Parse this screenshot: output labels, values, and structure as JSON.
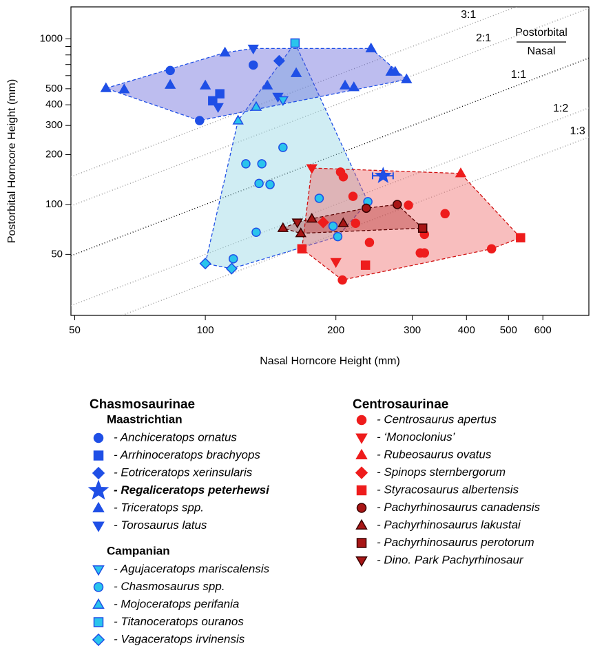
{
  "chart_data": {
    "type": "scatter",
    "xlabel": "Nasal Horncore Height (mm)",
    "ylabel": "Postorbital Horncore Height (mm)",
    "xscale": "log",
    "yscale": "log",
    "xlim": [
      49,
      766
    ],
    "ylim": [
      21.4,
      1560
    ],
    "xticks": [
      50,
      100,
      200,
      300,
      400,
      500,
      600
    ],
    "yticks": [
      50,
      100,
      200,
      300,
      400,
      500,
      1000
    ],
    "yminor_ticks": [
      600,
      700,
      800,
      900
    ],
    "ratio_title": {
      "top": "Postorbital",
      "bottom": "Nasal"
    },
    "ratio_lines": [
      {
        "label": "3:1",
        "ratio": 3,
        "color": "#9a9a9a"
      },
      {
        "label": "2:1",
        "ratio": 2,
        "color": "#9a9a9a"
      },
      {
        "label": "1:1",
        "ratio": 1,
        "color": "#000000"
      },
      {
        "label": "1:2",
        "ratio": 0.5,
        "color": "#9a9a9a"
      },
      {
        "label": "1:3",
        "ratio": 0.3333,
        "color": "#9a9a9a"
      }
    ],
    "series": [
      {
        "name": "- Anchiceratops ornatus",
        "marker": "circle",
        "color": "#1f4fe6",
        "edge": "#1f4fe6",
        "x": [
          83,
          129,
          97
        ],
        "values": [
          644,
          695,
          321
        ]
      },
      {
        "name": "- Arrhinoceratops brachyops",
        "marker": "square",
        "color": "#1f4fe6",
        "edge": "#1f4fe6",
        "x": [
          108,
          104
        ],
        "values": [
          466,
          423
        ]
      },
      {
        "name": "- Eotriceratops xerinsularis",
        "marker": "diamond",
        "color": "#1f4fe6",
        "edge": "#1f4fe6",
        "x": [
          148
        ],
        "values": [
          737
        ]
      },
      {
        "name": "- Regaliceratops peterhewsi",
        "marker": "star",
        "bold": true,
        "color": "#1f4fe6",
        "edge": "#1f4fe6",
        "x": [
          257
        ],
        "values": [
          149
        ],
        "xerr": [
          14
        ]
      },
      {
        "name": "- Triceratops spp.",
        "marker": "triangle-up",
        "color": "#1f4fe6",
        "edge": "#1f4fe6",
        "x": [
          59,
          65,
          83,
          100,
          111,
          162,
          139,
          210,
          220,
          241,
          268,
          274,
          291
        ],
        "values": [
          503,
          495,
          527,
          522,
          826,
          620,
          522,
          522,
          510,
          875,
          632,
          632,
          569
        ]
      },
      {
        "name": "- Torosaurus latus",
        "marker": "triangle-down",
        "color": "#1f4fe6",
        "edge": "#1f4fe6",
        "x": [
          129,
          147,
          107
        ],
        "values": [
          875,
          448,
          388
        ]
      },
      {
        "name": "- Agujaceratops mariscalensis",
        "marker": "triangle-down",
        "color": "#2ac4ec",
        "edge": "#1f4fe6",
        "x": [
          151
        ],
        "values": [
          427
        ]
      },
      {
        "name": "- Chasmosaurus spp.",
        "marker": "circle",
        "color": "#2ac4ec",
        "edge": "#1f4fe6",
        "x": [
          151,
          124,
          135,
          133,
          141,
          183,
          237,
          197,
          202,
          131,
          116
        ],
        "values": [
          221,
          176,
          176,
          134,
          132,
          109,
          104,
          74,
          64,
          68,
          47
        ]
      },
      {
        "name": "- Mojoceratops perifania",
        "marker": "triangle-up",
        "color": "#2ac4ec",
        "edge": "#1f4fe6",
        "x": [
          131,
          119
        ],
        "values": [
          388,
          321
        ]
      },
      {
        "name": "- Titanoceratops ouranos",
        "marker": "square",
        "color": "#2ac4ec",
        "edge": "#1f4fe6",
        "x": [
          161
        ],
        "values": [
          944
        ]
      },
      {
        "name": "- Vagaceratops irvinensis",
        "marker": "diamond",
        "color": "#2ac4ec",
        "edge": "#1f4fe6",
        "x": [
          100,
          115
        ],
        "values": [
          44,
          41
        ]
      },
      {
        "name": "- Centrosaurus apertus",
        "marker": "circle",
        "color": "#ee1c1c",
        "edge": "#ee1c1c",
        "x": [
          205,
          208,
          219,
          222,
          239,
          207,
          294,
          320,
          313,
          320,
          357,
          457
        ],
        "values": [
          157,
          147,
          112,
          77,
          59,
          35,
          99,
          66,
          51,
          51,
          88,
          54
        ]
      },
      {
        "name": "- ‘Monoclonius’",
        "marker": "triangle-down",
        "color": "#ee1c1c",
        "edge": "#ee1c1c",
        "x": [
          176,
          200
        ],
        "values": [
          166,
          45
        ]
      },
      {
        "name": "- Rubeosaurus ovatus",
        "marker": "triangle-up",
        "color": "#ee1c1c",
        "edge": "#ee1c1c",
        "x": [
          388
        ],
        "values": [
          154
        ]
      },
      {
        "name": "- Spinops sternbergorum",
        "marker": "diamond",
        "color": "#ee1c1c",
        "edge": "#ee1c1c",
        "x": [
          187
        ],
        "values": [
          78
        ]
      },
      {
        "name": "- Styracosaurus albertensis",
        "marker": "square",
        "color": "#ee1c1c",
        "edge": "#ee1c1c",
        "x": [
          167,
          234,
          533
        ],
        "values": [
          54,
          43,
          63
        ]
      },
      {
        "name": "- Pachyrhinosaurus canadensis",
        "marker": "circle",
        "color": "#a81616",
        "edge": "#3a0000",
        "x": [
          235,
          277
        ],
        "values": [
          95,
          100
        ]
      },
      {
        "name": "- Pachyrhinosaurus lakustai",
        "marker": "triangle-up",
        "color": "#a81616",
        "edge": "#3a0000",
        "x": [
          151,
          166,
          176,
          208
        ],
        "values": [
          72,
          67,
          82,
          77
        ]
      },
      {
        "name": "- Pachyrhinosaurus perotorum",
        "marker": "square",
        "color": "#a81616",
        "edge": "#3a0000",
        "x": [
          317
        ],
        "values": [
          72
        ]
      },
      {
        "name": "- Dino. Park Pachyrhinosaur",
        "marker": "triangle-down",
        "italic": false,
        "color": "#a81616",
        "edge": "#3a0000",
        "x": [
          163
        ],
        "values": [
          78
        ]
      }
    ],
    "hulls": [
      {
        "series": [
          6,
          7,
          8,
          9,
          10
        ],
        "fill": "rgba(150,215,228,0.45)",
        "stroke": "#1f4fe6"
      },
      {
        "series": [
          0,
          1,
          2,
          4,
          5
        ],
        "fill": "rgba(90,90,215,0.4)",
        "stroke": "#1f4fe6"
      },
      {
        "series": [
          11,
          12,
          13,
          14,
          15
        ],
        "fill": "rgba(240,110,110,0.45)",
        "stroke": "#d01010"
      },
      {
        "series": [
          16,
          17,
          18,
          19
        ],
        "fill": "rgba(170,30,30,0.35)",
        "stroke": "#5a0000"
      }
    ],
    "legend": [
      {
        "title": "Chasmosaurinae",
        "sections": [
          {
            "title": "Maastrichtian",
            "color": "#1f4fe6",
            "series": [
              0,
              1,
              2,
              3,
              4,
              5
            ]
          },
          {
            "title": "Campanian",
            "color": "#1ec0e8",
            "series": [
              6,
              7,
              8,
              9,
              10
            ]
          }
        ]
      },
      {
        "title": "Centrosaurinae",
        "sections": [
          {
            "color": "#e81414",
            "series": [
              11,
              12,
              13,
              14,
              15,
              16,
              17,
              18,
              19
            ]
          }
        ]
      }
    ]
  }
}
